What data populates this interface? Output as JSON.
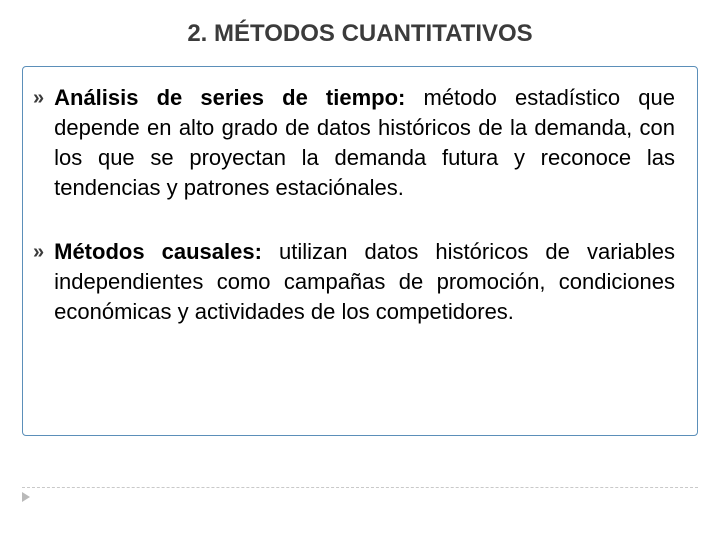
{
  "title": "2. MÉTODOS CUANTITATIVOS",
  "box_border_color": "#5b8fb9",
  "text_color": "#000000",
  "title_color": "#3b3b3b",
  "title_fontsize": 24,
  "body_fontsize": 22,
  "line_height": 30,
  "bullet_glyph": "»",
  "items": [
    {
      "lead": "Análisis de series de tiempo:",
      "rest": " método estadístico que depende en alto grado de datos históricos de la demanda, con los que se proyectan la demanda futura y reconoce las tendencias y patrones estaciónales."
    },
    {
      "lead": "Métodos causales:",
      "rest": " utilizan datos históricos de variables independientes como campañas de promoción, condiciones económicas y actividades de los competidores."
    }
  ],
  "footer_rule_color": "#c9c9c9",
  "footer_marker_color": "#b9b9b9"
}
